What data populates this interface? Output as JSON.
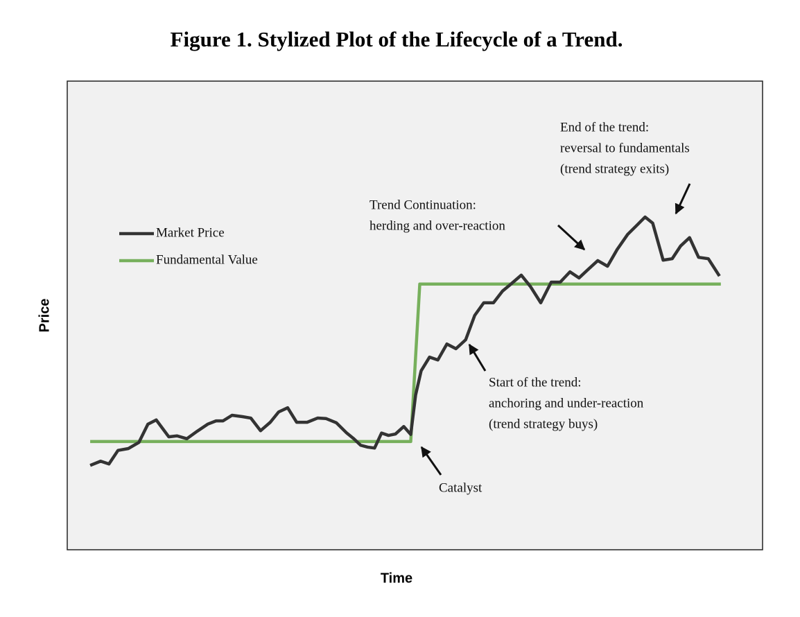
{
  "chart_data": {
    "type": "line",
    "title": "Figure 1. Stylized Plot of the Lifecycle of a Trend.",
    "xlabel": "Time",
    "ylabel": "Price",
    "xlim": [
      0,
      100
    ],
    "ylim": [
      0,
      100
    ],
    "legend": "upper left",
    "series": [
      {
        "name": "Market Price",
        "color": "#333333",
        "x": [
          3.3,
          4.8,
          6.0,
          7.3,
          8.8,
          10.3,
          11.6,
          12.8,
          14.6,
          15.8,
          17.2,
          18.7,
          20.2,
          21.4,
          22.4,
          23.7,
          25.2,
          26.4,
          27.8,
          29.2,
          30.4,
          31.7,
          33.0,
          34.5,
          36.0,
          37.2,
          38.7,
          40.2,
          41.2,
          42.2,
          43.2,
          44.2,
          45.2,
          46.2,
          47.2,
          48.4,
          49.4,
          50.1,
          50.9,
          52.1,
          53.3,
          54.6,
          55.9,
          57.3,
          58.6,
          59.9,
          61.3,
          62.6,
          63.9,
          65.3,
          66.6,
          68.1,
          69.6,
          70.9,
          72.3,
          73.6,
          74.9,
          76.3,
          77.7,
          79.1,
          80.6,
          81.9,
          83.1,
          84.2,
          85.7,
          87.0,
          88.2,
          89.5,
          90.8,
          92.2,
          93.8
        ],
        "values": [
          18.0,
          18.9,
          18.3,
          21.2,
          21.6,
          22.9,
          26.8,
          27.7,
          24.1,
          24.3,
          23.7,
          25.3,
          26.8,
          27.5,
          27.5,
          28.7,
          28.4,
          28.1,
          25.4,
          27.2,
          29.4,
          30.3,
          27.2,
          27.2,
          28.1,
          28.0,
          27.1,
          24.9,
          23.7,
          22.3,
          21.9,
          21.7,
          24.9,
          24.4,
          24.7,
          26.3,
          24.6,
          33.0,
          38.2,
          41.1,
          40.5,
          43.9,
          42.9,
          44.8,
          50.0,
          52.7,
          52.7,
          55.2,
          56.8,
          58.6,
          56.2,
          52.7,
          57.1,
          57.1,
          59.3,
          58.0,
          59.8,
          61.7,
          60.5,
          64.1,
          67.3,
          69.2,
          71.0,
          69.7,
          61.8,
          62.1,
          64.8,
          66.6,
          62.4,
          62.1,
          58.4
        ]
      },
      {
        "name": "Fundamental Value",
        "color": "#77b05c",
        "x": [
          3.3,
          49.4,
          50.7,
          94.0
        ],
        "values": [
          23.1,
          23.1,
          56.7,
          56.7
        ]
      }
    ],
    "annotations": [
      [
        "End of the trend:",
        "reversal to fundamentals",
        "(trend strategy exits)"
      ],
      [
        "Trend Continuation:",
        "herding and over-reaction"
      ],
      [
        "Start of the trend:",
        "anchoring and under-reaction",
        "(trend strategy buys)"
      ],
      [
        "Catalyst"
      ]
    ]
  }
}
